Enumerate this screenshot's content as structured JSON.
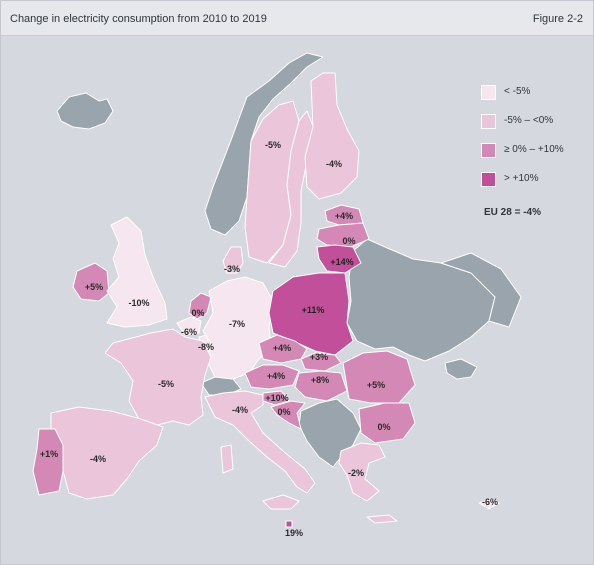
{
  "header": {
    "title": "Change in electricity consumption from 2010 to 2019",
    "figure": "Figure 2-2"
  },
  "legend": {
    "items": [
      {
        "label": "< -5%",
        "color": "#f5e6ef"
      },
      {
        "label": "-5% – <0%",
        "color": "#ebc5da"
      },
      {
        "label": "≥ 0% – +10%",
        "color": "#d488b6"
      },
      {
        "label": "> +10%",
        "color": "#c24f99"
      }
    ],
    "eu_total": "EU 28 = -4%"
  },
  "colors": {
    "non_eu": "#9aa4ac",
    "background": "#d5d8de",
    "border": "#ffffff"
  },
  "countries": [
    {
      "name": "Norway",
      "value": "-5%",
      "class": "-5% – <0%"
    },
    {
      "name": "Sweden",
      "value": "-4%",
      "class": "-5% – <0%"
    },
    {
      "name": "Finland",
      "value": "-4%",
      "class": "-5% – <0%"
    },
    {
      "name": "Estonia",
      "value": "+4%",
      "class": "≥ 0% – +10%"
    },
    {
      "name": "Latvia",
      "value": "0%",
      "class": "≥ 0% – +10%"
    },
    {
      "name": "Lithuania",
      "value": "+14%",
      "class": "> +10%"
    },
    {
      "name": "Denmark",
      "value": "-3%",
      "class": "-5% – <0%"
    },
    {
      "name": "Ireland",
      "value": "+5%",
      "class": "≥ 0% – +10%"
    },
    {
      "name": "United Kingdom",
      "value": "-10%",
      "class": "< -5%"
    },
    {
      "name": "Netherlands",
      "value": "0%",
      "class": "≥ 0% – +10%"
    },
    {
      "name": "Belgium",
      "value": "-6%",
      "class": "< -5%"
    },
    {
      "name": "Luxembourg",
      "value": "-8%",
      "class": "< -5%"
    },
    {
      "name": "Germany",
      "value": "-7%",
      "class": "< -5%"
    },
    {
      "name": "Poland",
      "value": "+11%",
      "class": "> +10%"
    },
    {
      "name": "Czechia",
      "value": "+4%",
      "class": "≥ 0% – +10%"
    },
    {
      "name": "Slovakia",
      "value": "+3%",
      "class": "≥ 0% – +10%"
    },
    {
      "name": "Austria",
      "value": "+4%",
      "class": "≥ 0% – +10%"
    },
    {
      "name": "Hungary",
      "value": "+8%",
      "class": "≥ 0% – +10%"
    },
    {
      "name": "Slovenia",
      "value": "+10%",
      "class": "≥ 0% – +10%"
    },
    {
      "name": "Croatia",
      "value": "0%",
      "class": "≥ 0% – +10%"
    },
    {
      "name": "Romania",
      "value": "+5%",
      "class": "≥ 0% – +10%"
    },
    {
      "name": "Bulgaria",
      "value": "0%",
      "class": "≥ 0% – +10%"
    },
    {
      "name": "France",
      "value": "-5%",
      "class": "-5% – <0%"
    },
    {
      "name": "Italy",
      "value": "-4%",
      "class": "-5% – <0%"
    },
    {
      "name": "Spain",
      "value": "-4%",
      "class": "-5% – <0%"
    },
    {
      "name": "Portugal",
      "value": "+1%",
      "class": "≥ 0% – +10%"
    },
    {
      "name": "Greece",
      "value": "-2%",
      "class": "-5% – <0%"
    },
    {
      "name": "Malta",
      "value": "19%",
      "class": "> +10%"
    },
    {
      "name": "Cyprus",
      "value": "-6%",
      "class": "< -5%"
    }
  ]
}
